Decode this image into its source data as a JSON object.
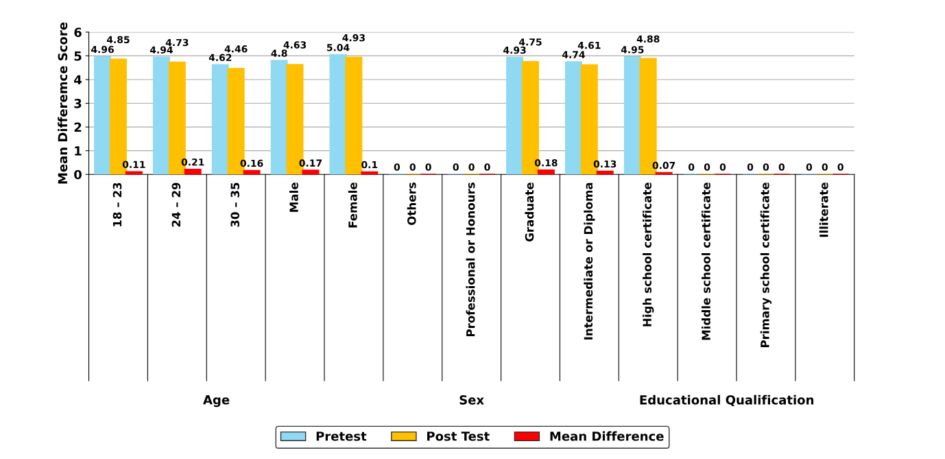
{
  "chart_data": {
    "type": "bar",
    "ylabel": "Mean Differemce Score",
    "categories": [
      "18 – 23",
      "24 – 29",
      "30 – 35",
      "Male",
      "Female",
      "Others",
      "Professional or Honours",
      "Graduate",
      "Intermediate or Diploma",
      "High school certificate",
      "Middle school certificate",
      "Primary school certificate",
      "Illiterate"
    ],
    "series": [
      {
        "name": "Pretest",
        "color": "#8fd9f2",
        "values": [
          4.96,
          4.94,
          4.62,
          4.8,
          5.04,
          0,
          0,
          4.93,
          4.74,
          4.95,
          0,
          0,
          0
        ]
      },
      {
        "name": "Post Test",
        "color": "#ffc000",
        "values": [
          4.85,
          4.73,
          4.46,
          4.63,
          4.93,
          0,
          0,
          4.75,
          4.61,
          4.88,
          0,
          0,
          0
        ]
      },
      {
        "name": "Mean Difference",
        "color": "#ff0000",
        "values": [
          0.11,
          0.21,
          0.16,
          0.17,
          0.1,
          0,
          0,
          0.18,
          0.13,
          0.07,
          0,
          0,
          0
        ]
      }
    ],
    "annotations": [
      "Age",
      "Sex",
      "Educational Qualification"
    ],
    "ylim": [
      0,
      6
    ],
    "yticks": [
      0,
      1,
      2,
      3,
      4,
      5,
      6
    ],
    "grid": "y",
    "legend": "bottom",
    "data_labels": true
  }
}
